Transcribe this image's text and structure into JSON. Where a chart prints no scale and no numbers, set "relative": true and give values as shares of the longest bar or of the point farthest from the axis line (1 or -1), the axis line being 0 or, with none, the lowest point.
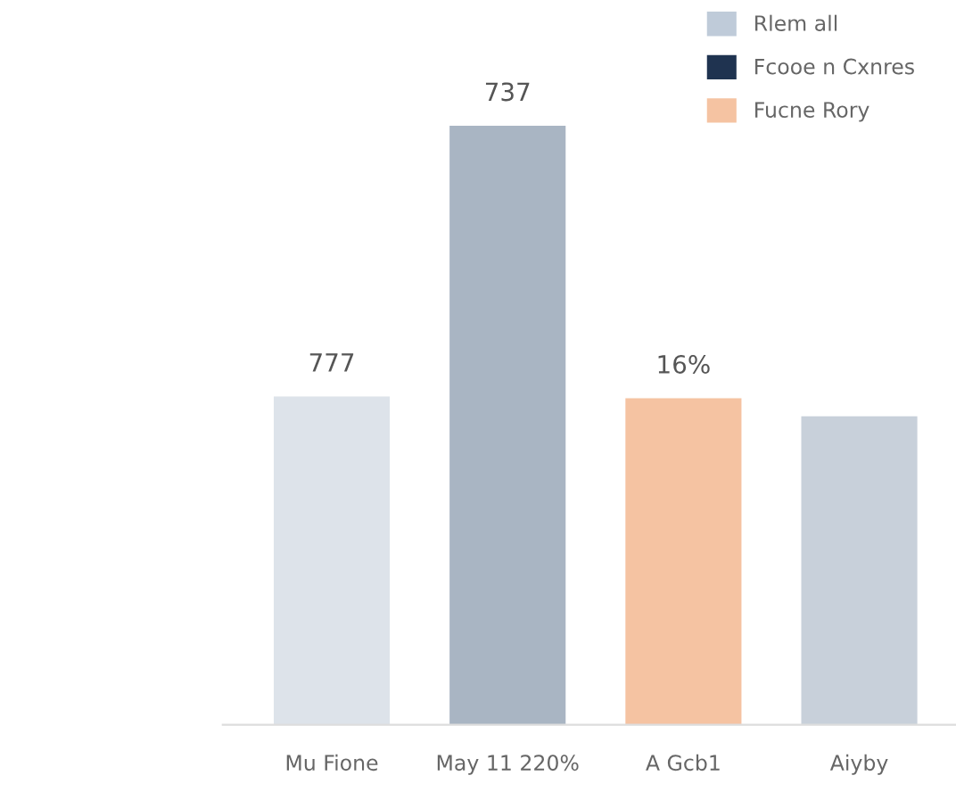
{
  "chart_data": {
    "type": "bar",
    "relative": true,
    "categories": [
      "Mu Fione",
      "May 11 220%",
      "A Gcb1",
      "Aiyby"
    ],
    "series": [
      {
        "name": "Rlem all",
        "color": "#bfcbd9",
        "colors": [
          "#dde3ea",
          "#a9b5c3",
          null,
          "#c8d0da"
        ],
        "values": [
          0.548,
          1,
          null,
          0.515
        ]
      },
      {
        "name": "Fcooe n Cxnres",
        "color": "#1f3350",
        "values": [
          null,
          null,
          null,
          null
        ]
      },
      {
        "name": "Fucne Rory",
        "color": "#f5c3a2",
        "values": [
          null,
          null,
          0.545,
          null
        ]
      }
    ],
    "annotations": [
      {
        "text": "777",
        "x": "Mu Fione",
        "y": 0.548
      },
      {
        "text": "737",
        "x": "May 11 220%",
        "y": 1
      },
      {
        "text": "16%",
        "x": "A Gcb1",
        "y": 0.545
      }
    ],
    "legend": "top right",
    "grid": false
  }
}
